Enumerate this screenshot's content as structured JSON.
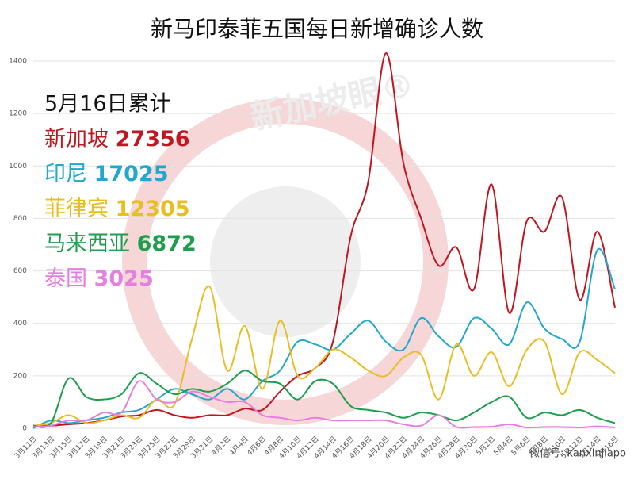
{
  "chart_data": {
    "type": "line",
    "title": "新马印泰菲五国每日新增确诊人数",
    "legend_title": "5月16日累计",
    "watermark": "新加坡眼®",
    "footer": "微信号: kanxinjiapo",
    "categories": [
      "3月11日",
      "3月13日",
      "3月15日",
      "3月17日",
      "3月19日",
      "3月21日",
      "3月23日",
      "3月25日",
      "3月27日",
      "3月29日",
      "3月31日",
      "4月2日",
      "4月4日",
      "4月6日",
      "4月8日",
      "4月10日",
      "4月12日",
      "4月14日",
      "4月16日",
      "4月18日",
      "4月20日",
      "4月22日",
      "4月24日",
      "4月26日",
      "4月28日",
      "4月30日",
      "5月2日",
      "5月4日",
      "5月6日",
      "5月8日",
      "5月10日",
      "5月12日",
      "5月14日",
      "5月16日"
    ],
    "ylim": [
      0,
      1400
    ],
    "yticks": [
      0,
      200,
      400,
      600,
      800,
      1000,
      1200,
      1400
    ],
    "grid": true,
    "series": [
      {
        "name": "新加坡",
        "total": 27356,
        "color": "#c0161f",
        "values": [
          10,
          10,
          15,
          20,
          30,
          45,
          50,
          70,
          50,
          40,
          50,
          50,
          75,
          70,
          140,
          200,
          230,
          330,
          730,
          940,
          1430,
          1010,
          800,
          620,
          690,
          530,
          930,
          440,
          790,
          750,
          880,
          490,
          750,
          460
        ]
      },
      {
        "name": "印尼",
        "total": 17025,
        "color": "#22a8cc",
        "values": [
          0,
          30,
          20,
          30,
          40,
          60,
          70,
          110,
          150,
          130,
          110,
          150,
          110,
          180,
          220,
          330,
          320,
          300,
          360,
          410,
          330,
          300,
          420,
          350,
          310,
          420,
          380,
          320,
          480,
          380,
          340,
          330,
          680,
          530
        ]
      },
      {
        "name": "菲律宾",
        "total": 12305,
        "color": "#e8be22",
        "values": [
          10,
          20,
          50,
          20,
          30,
          50,
          40,
          110,
          90,
          340,
          540,
          220,
          390,
          150,
          410,
          200,
          230,
          300,
          270,
          220,
          200,
          270,
          280,
          110,
          320,
          200,
          290,
          160,
          300,
          330,
          130,
          290,
          260,
          210
        ]
      },
      {
        "name": "马来西亚",
        "total": 6872,
        "color": "#1e9e4c",
        "values": [
          10,
          20,
          190,
          120,
          110,
          130,
          210,
          170,
          130,
          150,
          140,
          170,
          220,
          180,
          170,
          110,
          180,
          170,
          85,
          70,
          60,
          40,
          60,
          50,
          30,
          60,
          100,
          120,
          40,
          60,
          50,
          70,
          40,
          20
        ]
      },
      {
        "name": "泰国",
        "total": 3025,
        "color": "#e57fe0",
        "values": [
          5,
          10,
          30,
          30,
          60,
          60,
          180,
          110,
          100,
          140,
          120,
          100,
          100,
          50,
          40,
          30,
          40,
          30,
          30,
          30,
          30,
          15,
          10,
          50,
          5,
          5,
          6,
          15,
          3,
          5,
          5,
          3,
          7,
          3
        ]
      }
    ]
  }
}
